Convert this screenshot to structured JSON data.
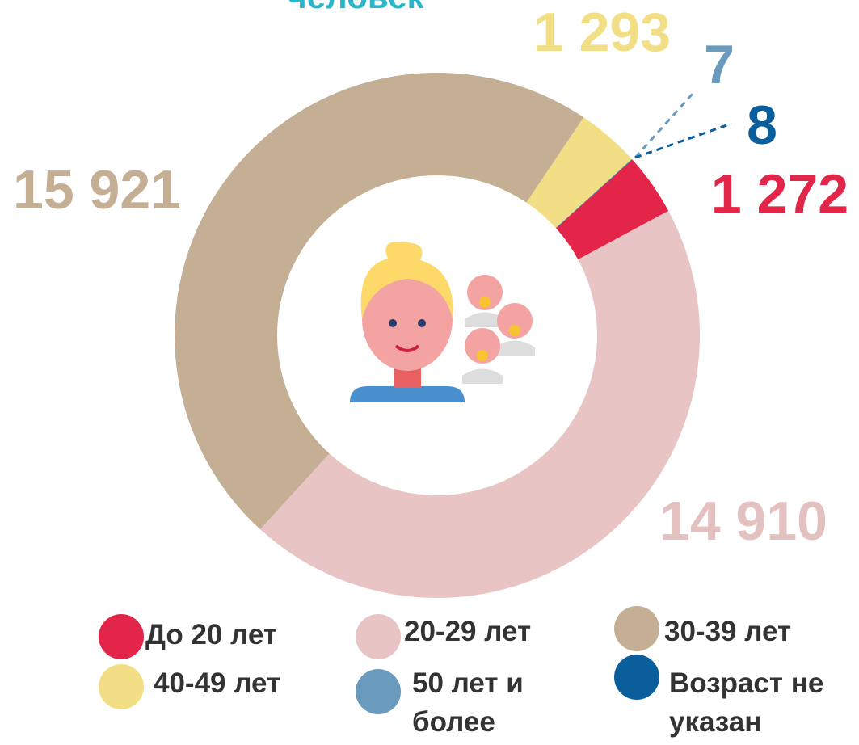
{
  "chart_data": {
    "type": "donut",
    "subtitle": "человек",
    "categories": [
      "До 20 лет",
      "20-29 лет",
      "30-39 лет",
      "40-49 лет",
      "50 лет и более",
      "Возраст не указан"
    ],
    "values": [
      1272,
      14910,
      15921,
      1293,
      7,
      8
    ],
    "value_labels": [
      "1 272",
      "14 910",
      "15 921",
      "1 293",
      "7",
      "8"
    ],
    "colors": [
      "#e4254a",
      "#e8c4c4",
      "#c4ae94",
      "#f2df85",
      "#6a9bbd",
      "#0b5e9c"
    ]
  }
}
